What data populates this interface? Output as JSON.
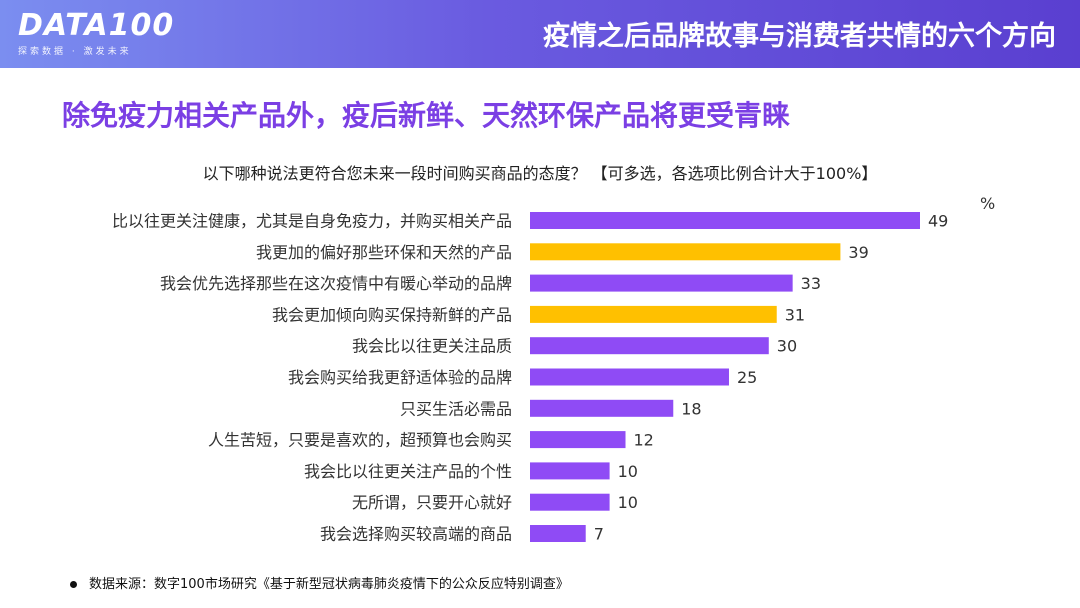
{
  "header": {
    "logo_text": "DATA100",
    "logo_sub": "探索数据 · 激发未来",
    "title": "疫情之后品牌故事与消费者共情的六个方向"
  },
  "headline": "除免疫力相关产品外，疫后新鲜、天然环保产品将更受青睐",
  "question": "以下哪种说法更符合您未来一段时间购买商品的态度？ 【可多选，各选项比例合计大于100%】",
  "unit_label": "%",
  "source": "数据来源：数字100市场研究《基于新型冠状病毒肺炎疫情下的公众反应特别调查》",
  "colors": {
    "purple": "#8f4bf5",
    "yellow": "#ffc000",
    "accent": "#7b3fe4"
  },
  "chart_data": {
    "type": "bar",
    "orientation": "horizontal",
    "categories": [
      "比以往更关注健康，尤其是自身免疫力，并购买相关产品",
      "我更加的偏好那些环保和天然的产品",
      "我会优先选择那些在这次疫情中有暖心举动的品牌",
      "我会更加倾向购买保持新鲜的产品",
      "我会比以往更关注品质",
      "我会购买给我更舒适体验的品牌",
      "只买生活必需品",
      "人生苦短，只要是喜欢的，超预算也会购买",
      "我会比以往更关注产品的个性",
      "无所谓，只要开心就好",
      "我会选择购买较高端的商品"
    ],
    "values": [
      49,
      39,
      33,
      31,
      30,
      25,
      18,
      12,
      10,
      10,
      7
    ],
    "highlight": [
      false,
      true,
      false,
      true,
      false,
      false,
      false,
      false,
      false,
      false,
      false
    ],
    "unit": "%",
    "xlim": [
      0,
      49
    ],
    "grid": false,
    "legend": "none"
  }
}
